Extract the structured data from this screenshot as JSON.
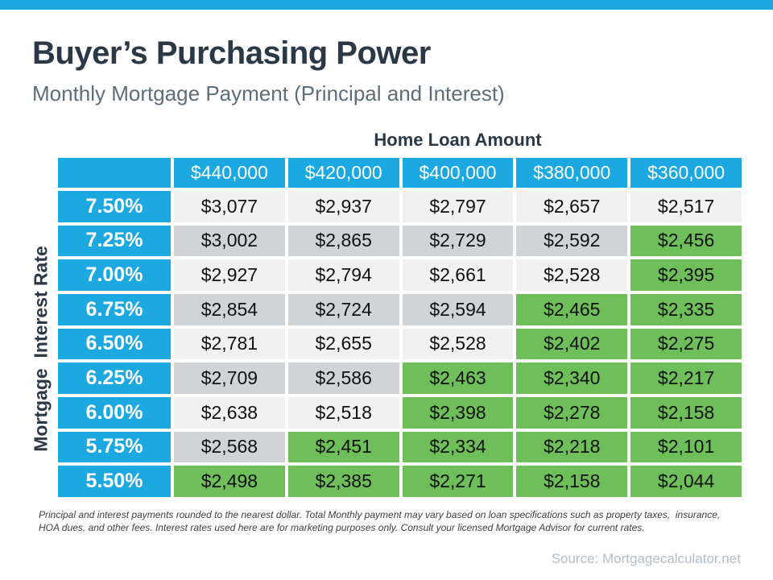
{
  "accent_color": "#1CA9E2",
  "green_color": "#6EBE59",
  "header": {
    "title": "Buyer’s Purchasing Power",
    "subtitle": "Monthly Mortgage Payment (Principal and Interest)"
  },
  "table": {
    "column_axis_title": "Home Loan Amount",
    "row_axis_title": "Mortgage  Interest Rate",
    "columns": [
      "$440,000",
      "$420,000",
      "$400,000",
      "$380,000",
      "$360,000"
    ],
    "rows": [
      {
        "rate": "7.50%",
        "values": [
          "$3,077",
          "$2,937",
          "$2,797",
          "$2,657",
          "$2,517"
        ],
        "green": [
          false,
          false,
          false,
          false,
          false
        ],
        "shade": "light"
      },
      {
        "rate": "7.25%",
        "values": [
          "$3,002",
          "$2,865",
          "$2,729",
          "$2,592",
          "$2,456"
        ],
        "green": [
          false,
          false,
          false,
          false,
          true
        ],
        "shade": "dark"
      },
      {
        "rate": "7.00%",
        "values": [
          "$2,927",
          "$2,794",
          "$2,661",
          "$2,528",
          "$2,395"
        ],
        "green": [
          false,
          false,
          false,
          false,
          true
        ],
        "shade": "light"
      },
      {
        "rate": "6.75%",
        "values": [
          "$2,854",
          "$2,724",
          "$2,594",
          "$2,465",
          "$2,335"
        ],
        "green": [
          false,
          false,
          false,
          true,
          true
        ],
        "shade": "dark"
      },
      {
        "rate": "6.50%",
        "values": [
          "$2,781",
          "$2,655",
          "$2,528",
          "$2,402",
          "$2,275"
        ],
        "green": [
          false,
          false,
          false,
          true,
          true
        ],
        "shade": "light"
      },
      {
        "rate": "6.25%",
        "values": [
          "$2,709",
          "$2,586",
          "$2,463",
          "$2,340",
          "$2,217"
        ],
        "green": [
          false,
          false,
          true,
          true,
          true
        ],
        "shade": "dark"
      },
      {
        "rate": "6.00%",
        "values": [
          "$2,638",
          "$2,518",
          "$2,398",
          "$2,278",
          "$2,158"
        ],
        "green": [
          false,
          false,
          true,
          true,
          true
        ],
        "shade": "light"
      },
      {
        "rate": "5.75%",
        "values": [
          "$2,568",
          "$2,451",
          "$2,334",
          "$2,218",
          "$2,101"
        ],
        "green": [
          false,
          true,
          true,
          true,
          true
        ],
        "shade": "dark"
      },
      {
        "rate": "5.50%",
        "values": [
          "$2,498",
          "$2,385",
          "$2,271",
          "$2,158",
          "$2,044"
        ],
        "green": [
          true,
          true,
          true,
          true,
          true
        ],
        "shade": "light"
      }
    ]
  },
  "chart_data": {
    "type": "table",
    "title": "Buyer’s Purchasing Power",
    "subtitle": "Monthly Mortgage Payment (Principal and Interest)",
    "column_group_label": "Home Loan Amount",
    "row_group_label": "Mortgage Interest Rate",
    "columns": [
      "$440,000",
      "$420,000",
      "$400,000",
      "$380,000",
      "$360,000"
    ],
    "rows": [
      "7.50%",
      "7.25%",
      "7.00%",
      "6.75%",
      "6.50%",
      "6.25%",
      "6.00%",
      "5.75%",
      "5.50%"
    ],
    "values": [
      [
        3077,
        2937,
        2797,
        2657,
        2517
      ],
      [
        3002,
        2865,
        2729,
        2592,
        2456
      ],
      [
        2927,
        2794,
        2661,
        2528,
        2395
      ],
      [
        2854,
        2724,
        2594,
        2465,
        2335
      ],
      [
        2781,
        2655,
        2528,
        2402,
        2275
      ],
      [
        2709,
        2586,
        2463,
        2340,
        2217
      ],
      [
        2638,
        2518,
        2398,
        2278,
        2158
      ],
      [
        2568,
        2451,
        2334,
        2218,
        2101
      ],
      [
        2498,
        2385,
        2271,
        2158,
        2044
      ]
    ]
  },
  "footnote": "Principal and interest payments rounded to the nearest dollar. Total Monthly payment may vary based on loan specifications such as property taxes,  insurance,\nHOA dues, and other fees. Interest rates used here are for marketing purposes only. Consult your licensed Mortgage Advisor for current rates.",
  "source": "Source: Mortgagecalculator.net"
}
